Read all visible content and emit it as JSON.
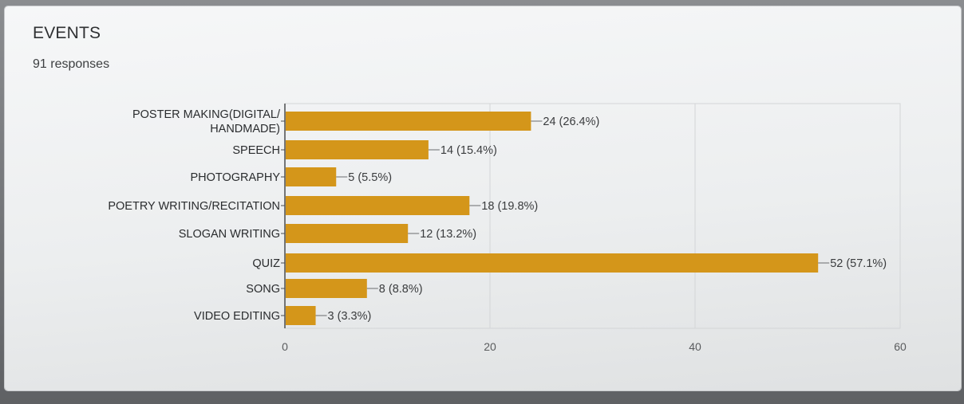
{
  "form": {
    "question_title": "EVENTS",
    "responses_text": "91 responses"
  },
  "colors": {
    "bar": "#d4961a",
    "grid": "#d3d5d7",
    "axis": "#4a4c4e",
    "leader": "#6a6c6e"
  },
  "chart_data": {
    "type": "bar",
    "orientation": "horizontal",
    "categories": [
      "POSTER MAKING(DIGITAL/ HANDMADE)",
      "SPEECH",
      "PHOTOGRAPHY",
      "POETRY WRITING/RECITATION",
      "SLOGAN WRITING",
      "QUIZ",
      "SONG",
      "VIDEO EDITING"
    ],
    "category_lines": [
      [
        "POSTER MAKING(DIGITAL/",
        "HANDMADE)"
      ],
      [
        "SPEECH"
      ],
      [
        "PHOTOGRAPHY"
      ],
      [
        "POETRY WRITING/RECITATION"
      ],
      [
        "SLOGAN WRITING"
      ],
      [
        "QUIZ"
      ],
      [
        "SONG"
      ],
      [
        "VIDEO EDITING"
      ]
    ],
    "values": [
      24,
      14,
      5,
      18,
      12,
      52,
      8,
      3
    ],
    "data_labels": [
      "24 (26.4%)",
      "14 (15.4%)",
      "5 (5.5%)",
      "18 (19.8%)",
      "12 (13.2%)",
      "52 (57.1%)",
      "8 (8.8%)",
      "3 (3.3%)"
    ],
    "xlim": [
      0,
      60
    ],
    "xticks": [
      0,
      20,
      40,
      60
    ],
    "grid": true,
    "title": "EVENTS",
    "xlabel": "",
    "ylabel": ""
  }
}
